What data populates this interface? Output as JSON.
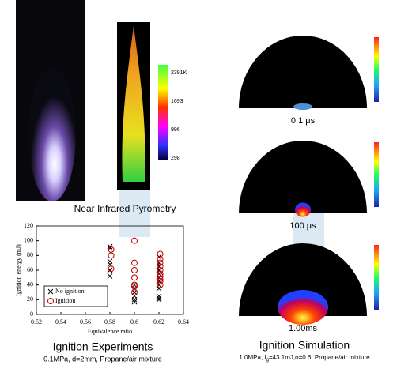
{
  "pyrometry": {
    "caption": "Near Infrared Pyrometry",
    "colorbar_labels": [
      "2391K",
      "1693",
      "996",
      "298"
    ]
  },
  "chart_data": {
    "type": "scatter",
    "title": "Ignition Experiments",
    "subtitle": "0.1MPa, d=2mm, Propane/air mixture",
    "x_label": "Equivalence ratio",
    "y_label": "Ignition energy (mJ)",
    "xlim": [
      0.52,
      0.64
    ],
    "xticks": [
      0.52,
      0.54,
      0.56,
      0.58,
      0.6,
      0.62,
      0.64
    ],
    "ylim": [
      0,
      120
    ],
    "yticks": [
      0,
      20,
      40,
      60,
      80,
      100,
      120
    ],
    "series": [
      {
        "name": "No ignition",
        "color": "#000000",
        "marker": "x",
        "x": [
          0.58,
          0.58,
          0.58,
          0.58,
          0.58,
          0.58,
          0.6,
          0.6,
          0.6,
          0.6,
          0.6,
          0.6,
          0.62,
          0.62,
          0.62,
          0.62,
          0.62,
          0.62,
          0.62,
          0.62,
          0.62,
          0.62,
          0.62,
          0.62
        ],
        "values": [
          92,
          90,
          72,
          68,
          60,
          52,
          40,
          35,
          30,
          25,
          20,
          17,
          78,
          70,
          65,
          60,
          55,
          50,
          45,
          40,
          35,
          25,
          22,
          20
        ]
      },
      {
        "name": "Ignition",
        "color": "#c00000",
        "marker": "o",
        "x": [
          0.581,
          0.581,
          0.581,
          0.6,
          0.6,
          0.6,
          0.6,
          0.6,
          0.6,
          0.6,
          0.621,
          0.621,
          0.621,
          0.621,
          0.621,
          0.621,
          0.621,
          0.621,
          0.621,
          0.621
        ],
        "values": [
          88,
          80,
          62,
          100,
          70,
          60,
          50,
          40,
          38,
          30,
          82,
          75,
          70,
          65,
          60,
          55,
          52,
          48,
          45,
          40
        ]
      }
    ]
  },
  "simulation": {
    "title": "Ignition Simulation",
    "subtitle": [
      "1.0MPa, I",
      "g",
      "=43.1mJ,ϕ=0.6, Propane/air mixture"
    ],
    "frames": [
      "0.1 μs",
      "100 μs",
      "1.00ms"
    ]
  }
}
